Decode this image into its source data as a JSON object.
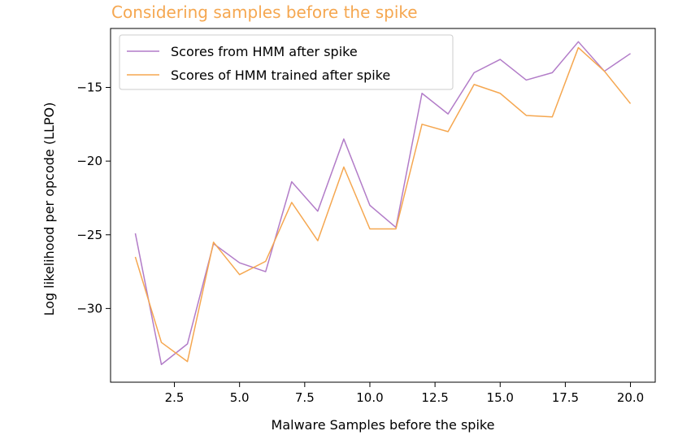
{
  "chart_data": {
    "type": "line",
    "title": "Considering samples before the spike",
    "xlabel": "Malware Samples before the spike",
    "ylabel": "Log likelihood per opcode (LLPO)",
    "xlim": [
      0.05,
      20.95
    ],
    "ylim": [
      -35.0,
      -11.0
    ],
    "xticks": [
      2.5,
      5.0,
      7.5,
      10.0,
      12.5,
      15.0,
      17.5,
      20.0
    ],
    "xtick_labels": [
      "2.5",
      "5.0",
      "7.5",
      "10.0",
      "12.5",
      "15.0",
      "17.5",
      "20.0"
    ],
    "yticks": [
      -30,
      -25,
      -20,
      -15
    ],
    "ytick_labels": [
      "−30",
      "−25",
      "−20",
      "−15"
    ],
    "grid": false,
    "legend_position": "top-left",
    "x": [
      1,
      2,
      3,
      4,
      5,
      6,
      7,
      8,
      9,
      10,
      11,
      12,
      13,
      14,
      15,
      16,
      17,
      18,
      19,
      20
    ],
    "series": [
      {
        "name": "Scores from HMM after spike",
        "color": "#b27cc8",
        "values": [
          -24.9,
          -33.8,
          -32.4,
          -25.6,
          -26.9,
          -27.5,
          -21.4,
          -23.4,
          -18.5,
          -23.0,
          -24.5,
          -15.4,
          -16.8,
          -14.0,
          -13.1,
          -14.5,
          -14.0,
          -11.9,
          -13.9,
          -12.7
        ]
      },
      {
        "name": "Scores of HMM trained after spike",
        "color": "#f5a750",
        "values": [
          -26.5,
          -32.3,
          -33.6,
          -25.5,
          -27.7,
          -26.8,
          -22.8,
          -25.4,
          -20.4,
          -24.6,
          -24.6,
          -17.5,
          -18.0,
          -14.8,
          -15.4,
          -16.9,
          -17.0,
          -12.3,
          -13.9,
          -16.1
        ]
      }
    ]
  },
  "colors": {
    "title": "#f5a750",
    "axis": "#000000",
    "text": "#000000"
  }
}
